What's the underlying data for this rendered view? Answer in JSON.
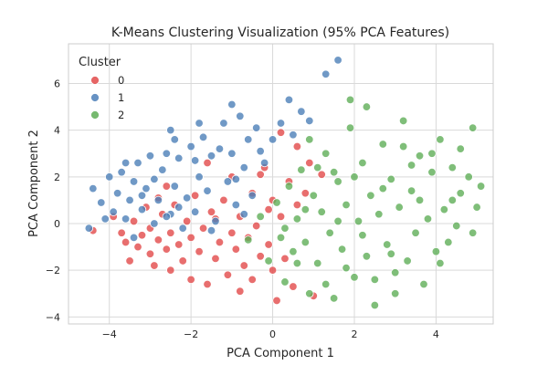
{
  "chart_data": {
    "type": "scatter",
    "title": "K-Means Clustering Visualization (95% PCA Features)",
    "xlabel": "PCA Component 1",
    "ylabel": "PCA Component 2",
    "xlim": [
      -5.0,
      5.4
    ],
    "ylim": [
      -4.3,
      7.7
    ],
    "xticks": [
      -4,
      -2,
      0,
      2,
      4
    ],
    "yticks": [
      -4,
      -2,
      0,
      2,
      4,
      6
    ],
    "xtick_labels": [
      "−4",
      "−2",
      "0",
      "2",
      "4"
    ],
    "ytick_labels": [
      "−4",
      "−2",
      "0",
      "2",
      "4",
      "6"
    ],
    "grid": true,
    "legend": {
      "title": "Cluster",
      "placement": "top-left",
      "entries": [
        "0",
        "1",
        "2"
      ]
    },
    "series": [
      {
        "name": "0",
        "color": "#e24a4a",
        "points": [
          [
            -4.4,
            -0.3
          ],
          [
            -3.9,
            0.3
          ],
          [
            -3.7,
            -0.4
          ],
          [
            -3.6,
            -0.8
          ],
          [
            -3.5,
            -1.6
          ],
          [
            -3.4,
            0.1
          ],
          [
            -3.3,
            -1.0
          ],
          [
            -3.2,
            -0.5
          ],
          [
            -3.0,
            -1.3
          ],
          [
            -3.0,
            -0.2
          ],
          [
            -2.9,
            -1.8
          ],
          [
            -2.8,
            -0.7
          ],
          [
            -2.7,
            0.4
          ],
          [
            -2.6,
            -1.1
          ],
          [
            -2.5,
            -0.4
          ],
          [
            -2.5,
            -2.0
          ],
          [
            -2.4,
            0.8
          ],
          [
            -2.3,
            -0.9
          ],
          [
            -2.2,
            -1.6
          ],
          [
            -2.1,
            0.1
          ],
          [
            -2.0,
            -0.6
          ],
          [
            -2.0,
            -2.4
          ],
          [
            -1.9,
            1.2
          ],
          [
            -1.8,
            -1.2
          ],
          [
            -1.7,
            -0.2
          ],
          [
            -1.6,
            -2.6
          ],
          [
            -1.5,
            0.5
          ],
          [
            -1.4,
            -1.5
          ],
          [
            -1.3,
            -0.8
          ],
          [
            -1.2,
            1.0
          ],
          [
            -1.1,
            -2.2
          ],
          [
            -1.0,
            -0.4
          ],
          [
            -1.0,
            2.0
          ],
          [
            -0.9,
            -1.1
          ],
          [
            -0.8,
            0.3
          ],
          [
            -0.8,
            -2.9
          ],
          [
            -0.7,
            -1.8
          ],
          [
            -0.6,
            -0.6
          ],
          [
            -0.5,
            1.3
          ],
          [
            -0.5,
            -2.4
          ],
          [
            -0.4,
            -0.1
          ],
          [
            -0.3,
            -1.4
          ],
          [
            -0.2,
            2.4
          ],
          [
            -0.1,
            -0.9
          ],
          [
            0.0,
            -2.0
          ],
          [
            0.0,
            1.0
          ],
          [
            0.1,
            -3.3
          ],
          [
            0.2,
            0.3
          ],
          [
            0.3,
            -1.5
          ],
          [
            0.4,
            1.8
          ],
          [
            0.5,
            -2.7
          ],
          [
            0.6,
            0.8
          ],
          [
            0.8,
            1.3
          ],
          [
            1.0,
            -3.1
          ],
          [
            -2.6,
            1.6
          ],
          [
            -3.1,
            0.7
          ],
          [
            -1.6,
            2.6
          ],
          [
            -0.3,
            2.1
          ],
          [
            0.6,
            3.3
          ],
          [
            0.9,
            2.6
          ],
          [
            1.2,
            2.1
          ],
          [
            0.2,
            3.9
          ],
          [
            -0.1,
            0.6
          ],
          [
            -1.4,
            0.2
          ],
          [
            -2.8,
            1.1
          ]
        ]
      },
      {
        "name": "1",
        "color": "#4c7fb8",
        "points": [
          [
            -4.5,
            -0.2
          ],
          [
            -4.4,
            1.5
          ],
          [
            -4.2,
            0.9
          ],
          [
            -4.0,
            2.0
          ],
          [
            -3.9,
            0.5
          ],
          [
            -3.8,
            1.3
          ],
          [
            -3.7,
            2.2
          ],
          [
            -3.6,
            0.2
          ],
          [
            -3.5,
            1.0
          ],
          [
            -3.4,
            1.8
          ],
          [
            -3.3,
            2.6
          ],
          [
            -3.2,
            0.6
          ],
          [
            -3.1,
            1.5
          ],
          [
            -3.0,
            2.9
          ],
          [
            -2.9,
            0.0
          ],
          [
            -2.8,
            1.0
          ],
          [
            -2.7,
            2.3
          ],
          [
            -2.6,
            3.0
          ],
          [
            -2.5,
            0.4
          ],
          [
            -2.4,
            1.6
          ],
          [
            -2.3,
            2.8
          ],
          [
            -2.2,
            -0.2
          ],
          [
            -2.1,
            1.1
          ],
          [
            -2.0,
            3.3
          ],
          [
            -1.9,
            0.5
          ],
          [
            -1.8,
            2.0
          ],
          [
            -1.7,
            3.7
          ],
          [
            -1.6,
            1.4
          ],
          [
            -1.5,
            2.9
          ],
          [
            -1.4,
            0.1
          ],
          [
            -1.3,
            3.2
          ],
          [
            -1.2,
            4.3
          ],
          [
            -1.1,
            1.8
          ],
          [
            -1.0,
            3.0
          ],
          [
            -0.9,
            0.8
          ],
          [
            -0.8,
            4.6
          ],
          [
            -0.7,
            2.4
          ],
          [
            -0.6,
            3.6
          ],
          [
            -0.5,
            1.2
          ],
          [
            -0.4,
            4.1
          ],
          [
            -0.3,
            3.1
          ],
          [
            -0.2,
            2.6
          ],
          [
            0.0,
            3.6
          ],
          [
            0.2,
            4.3
          ],
          [
            0.4,
            5.3
          ],
          [
            0.5,
            3.8
          ],
          [
            0.7,
            4.8
          ],
          [
            0.9,
            4.4
          ],
          [
            -2.5,
            4.0
          ],
          [
            -1.8,
            4.3
          ],
          [
            -1.0,
            5.1
          ],
          [
            1.3,
            6.4
          ],
          [
            1.6,
            7.0
          ],
          [
            -3.4,
            -0.6
          ],
          [
            -2.9,
            1.9
          ],
          [
            -2.3,
            0.7
          ],
          [
            -1.5,
            -0.3
          ],
          [
            -0.7,
            0.4
          ],
          [
            -0.9,
            1.9
          ],
          [
            -1.9,
            2.7
          ],
          [
            -3.6,
            2.6
          ],
          [
            -2.4,
            3.6
          ],
          [
            -4.1,
            0.2
          ],
          [
            -3.2,
            1.2
          ],
          [
            -2.6,
            0.3
          ]
        ]
      },
      {
        "name": "2",
        "color": "#5fae57",
        "points": [
          [
            -0.6,
            -0.7
          ],
          [
            -0.3,
            0.3
          ],
          [
            -0.1,
            -1.6
          ],
          [
            0.1,
            0.9
          ],
          [
            0.2,
            -0.6
          ],
          [
            0.3,
            -2.5
          ],
          [
            0.4,
            1.6
          ],
          [
            0.5,
            -1.2
          ],
          [
            0.6,
            0.2
          ],
          [
            0.7,
            2.3
          ],
          [
            0.8,
            -0.8
          ],
          [
            0.9,
            -3.0
          ],
          [
            1.0,
            1.2
          ],
          [
            1.1,
            -1.7
          ],
          [
            1.2,
            0.5
          ],
          [
            1.3,
            3.0
          ],
          [
            1.4,
            -0.4
          ],
          [
            1.5,
            -3.2
          ],
          [
            1.6,
            1.8
          ],
          [
            1.7,
            -1.1
          ],
          [
            1.8,
            0.8
          ],
          [
            1.9,
            4.1
          ],
          [
            2.0,
            -2.3
          ],
          [
            2.1,
            0.1
          ],
          [
            2.2,
            2.6
          ],
          [
            2.3,
            -1.4
          ],
          [
            2.4,
            1.2
          ],
          [
            2.5,
            -3.5
          ],
          [
            2.6,
            0.4
          ],
          [
            2.7,
            3.4
          ],
          [
            2.8,
            -0.9
          ],
          [
            2.9,
            1.9
          ],
          [
            3.0,
            -2.1
          ],
          [
            3.1,
            0.7
          ],
          [
            3.2,
            4.4
          ],
          [
            3.3,
            -1.6
          ],
          [
            3.4,
            1.4
          ],
          [
            3.5,
            -0.4
          ],
          [
            3.6,
            2.9
          ],
          [
            3.7,
            -2.6
          ],
          [
            3.8,
            0.2
          ],
          [
            3.9,
            2.2
          ],
          [
            4.0,
            -1.2
          ],
          [
            4.1,
            3.6
          ],
          [
            4.2,
            0.6
          ],
          [
            4.3,
            -0.8
          ],
          [
            4.4,
            2.4
          ],
          [
            4.5,
            -0.1
          ],
          [
            4.6,
            1.3
          ],
          [
            4.8,
            2.0
          ],
          [
            4.9,
            -0.4
          ],
          [
            5.0,
            0.7
          ],
          [
            5.1,
            1.6
          ],
          [
            4.9,
            4.1
          ],
          [
            4.6,
            3.2
          ],
          [
            1.9,
            5.3
          ],
          [
            2.3,
            5.0
          ],
          [
            0.9,
            3.6
          ],
          [
            3.0,
            -3.0
          ],
          [
            3.6,
            1.0
          ],
          [
            1.3,
            -2.6
          ],
          [
            2.7,
            1.5
          ],
          [
            0.6,
            -1.7
          ],
          [
            1.6,
            0.1
          ],
          [
            2.0,
            2.0
          ],
          [
            3.4,
            2.5
          ],
          [
            1.1,
            2.4
          ],
          [
            2.5,
            -2.4
          ],
          [
            4.1,
            -1.7
          ],
          [
            3.9,
            3.0
          ],
          [
            0.8,
            0.6
          ],
          [
            1.5,
            2.2
          ],
          [
            2.2,
            -0.5
          ],
          [
            2.9,
            -1.3
          ],
          [
            3.2,
            3.3
          ],
          [
            4.4,
            1.0
          ],
          [
            1.8,
            -1.9
          ],
          [
            0.3,
            -0.2
          ]
        ]
      }
    ]
  }
}
